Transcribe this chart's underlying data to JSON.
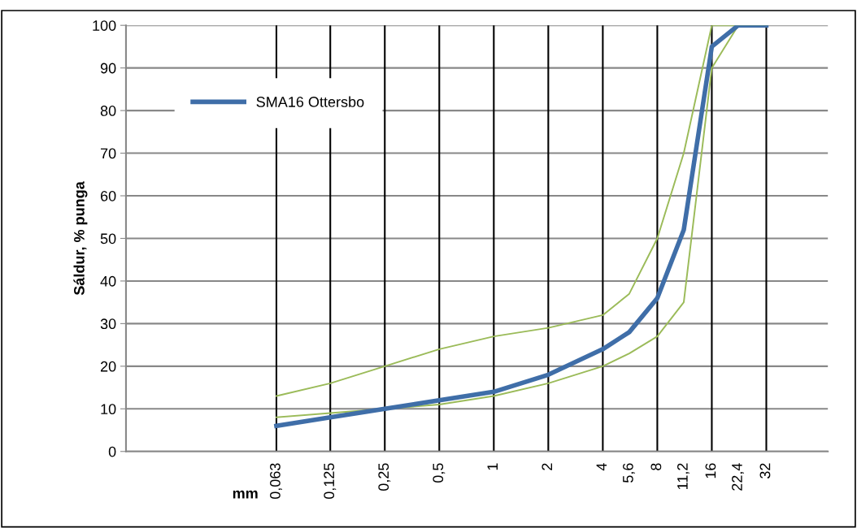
{
  "chart_data": {
    "type": "line",
    "xlabel": "mm",
    "ylabel": "Sáldur, % punga",
    "x": [
      0.063,
      0.125,
      0.25,
      0.5,
      1,
      2,
      4,
      5.6,
      8,
      11.2,
      16,
      22.4,
      32
    ],
    "log": "x",
    "xlim": [
      0.0093,
      70
    ],
    "xticks": [
      {
        "value": 0.063,
        "label": "0,063"
      },
      {
        "value": 0.125,
        "label": "0,125"
      },
      {
        "value": 0.25,
        "label": "0,25"
      },
      {
        "value": 0.5,
        "label": "0,5"
      },
      1,
      2,
      4,
      {
        "value": 5.6,
        "label": "5,6"
      },
      8,
      {
        "value": 11.2,
        "label": "11,2"
      },
      16,
      {
        "value": 22.4,
        "label": "22,4"
      },
      32
    ],
    "ylim": [
      0,
      100
    ],
    "yticks": [
      0,
      10,
      20,
      30,
      40,
      50,
      60,
      70,
      80,
      90,
      100
    ],
    "grid": "y",
    "legend": "top left",
    "series": [
      {
        "color": "#9bbb59",
        "values": [
          13,
          16,
          20,
          24,
          27,
          29,
          32,
          37,
          50,
          70,
          100,
          100,
          100
        ]
      },
      {
        "color": "#9bbb59",
        "values": [
          8,
          9,
          10,
          11,
          13,
          16,
          20,
          23,
          27,
          35,
          90,
          100,
          100
        ]
      },
      {
        "name": "SMA16 Ottersbo",
        "color": "#3f6ea8",
        "values": [
          6,
          8,
          10,
          12,
          14,
          18,
          24,
          28,
          36,
          52,
          95,
          100,
          100
        ]
      }
    ],
    "ref_lines": [
      {
        "axis": "x",
        "value": 0.063,
        "color": "#000000"
      },
      {
        "axis": "x",
        "value": 0.125,
        "color": "#000000"
      },
      {
        "axis": "x",
        "value": 0.25,
        "color": "#000000"
      },
      {
        "axis": "x",
        "value": 0.5,
        "color": "#000000"
      },
      {
        "axis": "x",
        "value": 1,
        "color": "#000000"
      },
      {
        "axis": "x",
        "value": 2,
        "color": "#000000"
      },
      {
        "axis": "x",
        "value": 4,
        "color": "#000000"
      },
      {
        "axis": "x",
        "value": 8,
        "color": "#000000"
      },
      {
        "axis": "x",
        "value": 16,
        "color": "#000000"
      },
      {
        "axis": "x",
        "value": 32,
        "color": "#000000"
      }
    ]
  }
}
